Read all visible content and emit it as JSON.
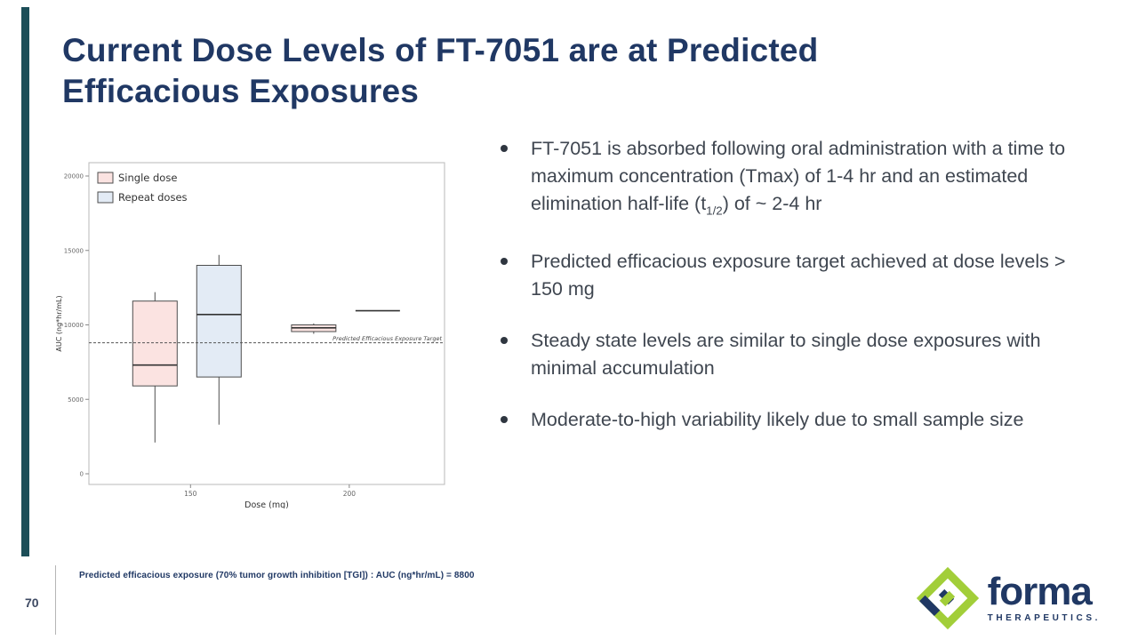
{
  "colors": {
    "navy": "#203864",
    "teal_bar": "#1c4e58",
    "body_text": "#3f4650",
    "accent_green": "#a2ce39"
  },
  "slide": {
    "title_line1": "Current Dose Levels of FT-7051 are at Predicted",
    "title_line2": "Efficacious Exposures",
    "page_number": "70",
    "footnote": "Predicted efficacious exposure (70% tumor growth inhibition  [TGI]) : AUC (ng*hr/mL) = 8800"
  },
  "bullets": [
    {
      "pre": "FT-7051 is absorbed following oral administration with a time to maximum concentration (Tmax)  of 1-4 hr and an estimated elimination half-life (t",
      "sub": "1/2",
      "post": ") of ~ 2-4 hr"
    },
    {
      "text": "Predicted efficacious exposure target achieved at dose levels > 150 mg"
    },
    {
      "text": "Steady state levels are similar to single dose exposures with minimal accumulation"
    },
    {
      "text": "Moderate-to-high variability likely due to small sample size"
    }
  ],
  "logo": {
    "wordmark": "forma",
    "subtext": "THERAPEUTICS."
  },
  "chart_data": {
    "type": "boxplot",
    "title": "",
    "xlabel": "Dose (mg)",
    "ylabel": "AUC (ng*hr/mL)",
    "ylim": [
      0,
      20000
    ],
    "xlim": [
      118,
      230
    ],
    "yticks": [
      0,
      5000,
      10000,
      15000,
      20000
    ],
    "xticks": [
      150,
      200
    ],
    "grid": false,
    "legend_position": "top-left",
    "series": [
      {
        "name": "Single dose",
        "color": "#fbe3e1",
        "boxes": [
          {
            "x": 150,
            "lo": 2100,
            "q1": 5900,
            "median": 7300,
            "q3": 11600,
            "hi": 12200
          },
          {
            "x": 200,
            "lo": 9400,
            "q1": 9550,
            "median": 9800,
            "q3": 10000,
            "hi": 10100
          }
        ]
      },
      {
        "name": "Repeat doses",
        "color": "#e3ebf5",
        "boxes": [
          {
            "x": 150,
            "lo": 3300,
            "q1": 6500,
            "median": 10700,
            "q3": 14000,
            "hi": 14700
          },
          {
            "x": 200,
            "lo": 10950,
            "q1": 10950,
            "median": 10950,
            "q3": 10950,
            "hi": 10950
          }
        ]
      }
    ],
    "reference_line": {
      "value": 8800,
      "label": "Predicted Efficacious Exposure Target"
    }
  }
}
